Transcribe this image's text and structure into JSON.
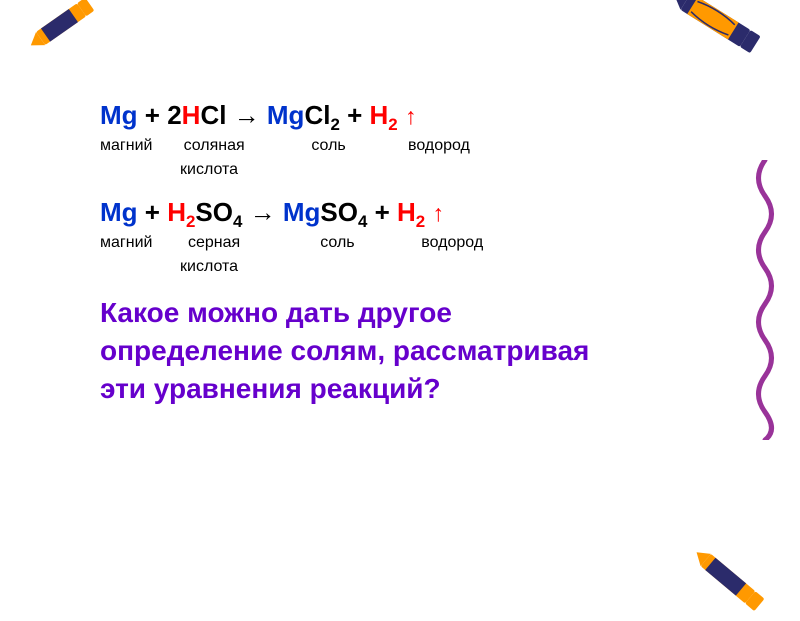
{
  "colors": {
    "blue": "#0033cc",
    "red": "#ff0000",
    "black": "#000000",
    "purple": "#6600cc",
    "crayon_orange": "#ff9900",
    "crayon_navy": "#2b2b6b",
    "squiggle": "#993399"
  },
  "fonts": {
    "equation_size": 26,
    "label_size": 16,
    "question_size": 28,
    "weight_bold": "bold"
  },
  "equations": [
    {
      "parts": [
        {
          "text": "Mg",
          "color": "blue",
          "sub": ""
        },
        {
          "text": "   +   ",
          "color": "black",
          "sub": ""
        },
        {
          "text": "2",
          "color": "black",
          "sub": ""
        },
        {
          "text": "H",
          "color": "red",
          "sub": ""
        },
        {
          "text": "Cl",
          "color": "black",
          "sub": ""
        },
        {
          "text": "   →   ",
          "color": "black",
          "sub": ""
        },
        {
          "text": "Mg",
          "color": "blue",
          "sub": ""
        },
        {
          "text": "Cl",
          "color": "black",
          "sub": "2"
        },
        {
          "text": "   +   ",
          "color": "black",
          "sub": ""
        },
        {
          "text": "H",
          "color": "red",
          "sub": "2"
        },
        {
          "text": " ",
          "color": "red",
          "sub": ""
        },
        {
          "text": "↑",
          "color": "red",
          "sub": "",
          "arrow": true
        }
      ],
      "label_line1": "магний       соляная               соль              водород",
      "label_line2": "                  кислота"
    },
    {
      "parts": [
        {
          "text": "Mg",
          "color": "blue",
          "sub": ""
        },
        {
          "text": "   +   ",
          "color": "black",
          "sub": ""
        },
        {
          "text": "H",
          "color": "red",
          "sub": "2"
        },
        {
          "text": "SO",
          "color": "black",
          "sub": "4"
        },
        {
          "text": "   →   ",
          "color": "black",
          "sub": ""
        },
        {
          "text": "Mg",
          "color": "blue",
          "sub": ""
        },
        {
          "text": "SO",
          "color": "black",
          "sub": "4"
        },
        {
          "text": "   +   ",
          "color": "black",
          "sub": ""
        },
        {
          "text": "H",
          "color": "red",
          "sub": "2"
        },
        {
          "text": " ",
          "color": "red",
          "sub": ""
        },
        {
          "text": "↑",
          "color": "red",
          "sub": "",
          "arrow": true
        }
      ],
      "label_line1": "магний        серная                  соль               водород",
      "label_line2": "                  кислота"
    }
  ],
  "question": {
    "lines": [
      "Какое можно дать другое",
      "определение солям, рассматривая",
      "эти уравнения        реакций?"
    ],
    "color": "purple"
  },
  "decorations": {
    "crayon_tl": {
      "body": "#ff9900",
      "wrap": "#2b2b6b",
      "length": 70
    },
    "crayon_tr": {
      "body": "#2b2b6b",
      "wrap": "#ff9900",
      "length": 90
    },
    "crayon_br": {
      "body": "#ff9900",
      "wrap": "#2b2b6b",
      "length": 75
    },
    "squiggle_color": "#993399"
  }
}
